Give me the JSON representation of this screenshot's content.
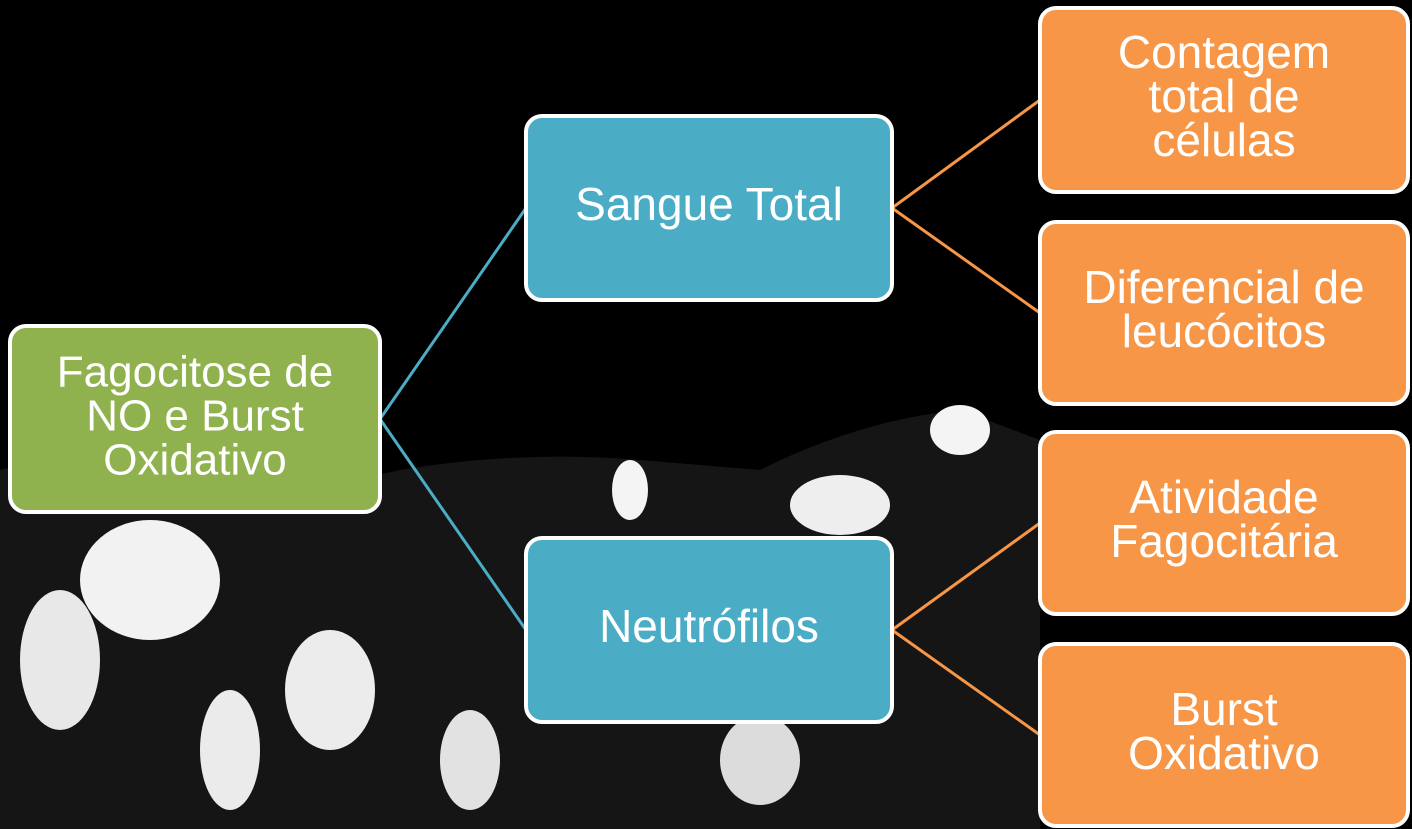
{
  "nodes": [
    {
      "lines": [
        "Fagocitose de",
        "NO e Burst",
        "Oxidativo"
      ],
      "color": "#8fb24e"
    },
    {
      "lines": [
        "Sangue Total"
      ],
      "color": "#4bacc6"
    },
    {
      "lines": [
        "Neutrófilos"
      ],
      "color": "#4bacc6"
    },
    {
      "lines": [
        "Contagem",
        "total de",
        "células"
      ],
      "color": "#f79646"
    },
    {
      "lines": [
        "Diferencial de",
        "leucócitos"
      ],
      "color": "#f79646"
    },
    {
      "lines": [
        "Atividade",
        "Fagocitária"
      ],
      "color": "#f79646"
    },
    {
      "lines": [
        "Burst",
        "Oxidativo"
      ],
      "color": "#f79646"
    }
  ],
  "edges": [
    {
      "from": 0,
      "to": 1,
      "color": "#4bacc6"
    },
    {
      "from": 0,
      "to": 2,
      "color": "#4bacc6"
    },
    {
      "from": 1,
      "to": 3,
      "color": "#f79646"
    },
    {
      "from": 1,
      "to": 4,
      "color": "#f79646"
    },
    {
      "from": 2,
      "to": 5,
      "color": "#f79646"
    },
    {
      "from": 2,
      "to": 6,
      "color": "#f79646"
    }
  ]
}
